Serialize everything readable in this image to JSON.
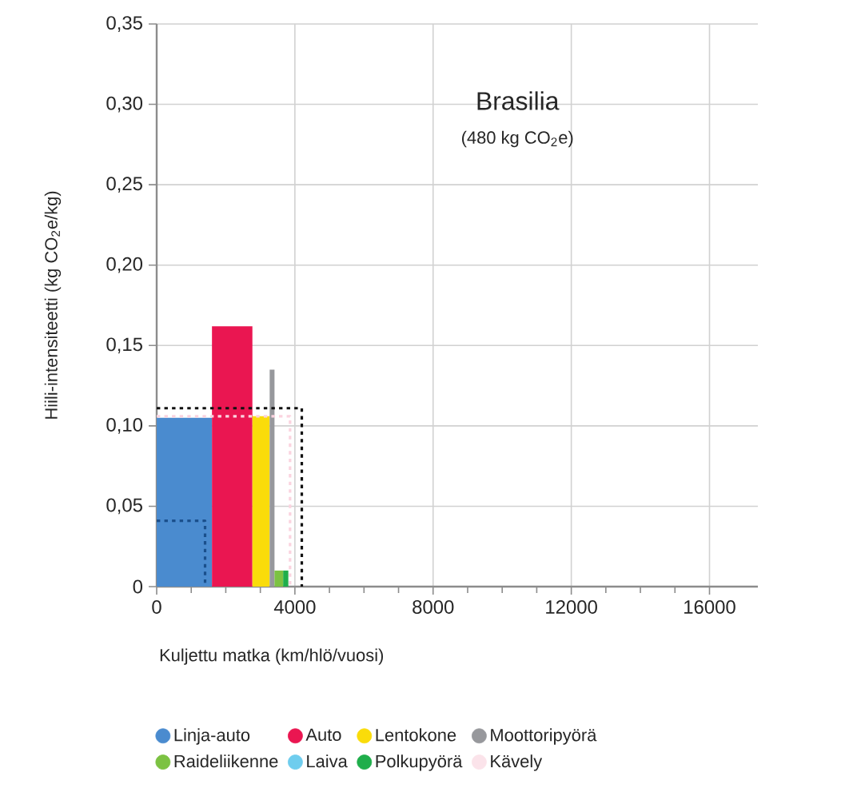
{
  "chart_data": {
    "type": "area",
    "title": "Brasilia",
    "subtitle": "(480 kg CO$_{2}$e)",
    "xlabel": "Kuljettu matka (km/hlö/vuosi)",
    "ylabel": "Hiili-intensiteetti  (kg CO$_{2}$e/kg)",
    "xlim": [
      0,
      17400
    ],
    "xticks": [
      0,
      4000,
      8000,
      12000,
      16000
    ],
    "ylim": [
      0,
      0.35
    ],
    "yticks": [
      {
        "value": 0,
        "label": "0"
      },
      {
        "value": 0.05,
        "label": "0,05"
      },
      {
        "value": 0.1,
        "label": "0,10"
      },
      {
        "value": 0.15,
        "label": "0,15"
      },
      {
        "value": 0.2,
        "label": "0,20"
      },
      {
        "value": 0.25,
        "label": "0,25"
      },
      {
        "value": 0.3,
        "label": "0,30"
      },
      {
        "value": 0.35,
        "label": "0,35"
      }
    ],
    "grid": true,
    "legend": "bottom",
    "series": [
      {
        "name": "Linja-auto",
        "color": "#4a8bcf",
        "x": [
          0,
          1600
        ],
        "values": [
          0.105,
          0.105
        ]
      },
      {
        "name": "Auto",
        "color": "#ea1651",
        "x": [
          1600,
          2770
        ],
        "values": [
          0.162,
          0.162
        ]
      },
      {
        "name": "Lentokone",
        "color": "#fadc0a",
        "x": [
          2770,
          3270
        ],
        "values": [
          0.106,
          0.106
        ]
      },
      {
        "name": "Moottoripyörä",
        "color": "#97989c",
        "x": [
          3270,
          3410
        ],
        "values": [
          0.135,
          0.135
        ]
      },
      {
        "name": "Raideliikenne",
        "color": "#7cc242",
        "x": [
          3410,
          3660
        ],
        "values": [
          0.01,
          0.01
        ]
      },
      {
        "name": "Laiva",
        "color": "#6fcdee"
      },
      {
        "name": "Polkupyörä",
        "color": "#1fae4b",
        "x": [
          3660,
          3810
        ],
        "values": [
          0.01,
          0.01
        ]
      },
      {
        "name": "Kävely",
        "color": "#fbe3ea"
      },
      {
        "type": "line",
        "line_style": "dotted",
        "color": "#fbd3df",
        "x": [
          0,
          3860,
          3860
        ],
        "values": [
          0.106,
          0.106,
          0
        ]
      },
      {
        "type": "line",
        "line_style": "dotted",
        "color": "#111111",
        "x": [
          0,
          4200,
          4200
        ],
        "values": [
          0.111,
          0.111,
          0
        ]
      },
      {
        "type": "line",
        "line_style": "dotted",
        "color": "#1a4f8c",
        "x": [
          0,
          1400,
          1400
        ],
        "values": [
          0.041,
          0.041,
          0
        ]
      }
    ]
  }
}
